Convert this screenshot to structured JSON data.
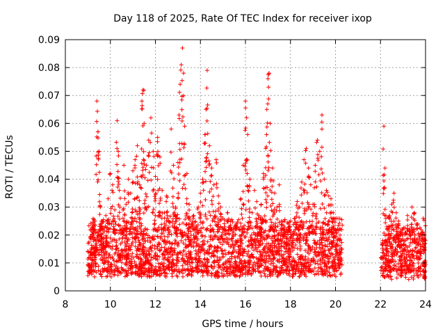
{
  "chart_data": {
    "type": "scatter",
    "title": "Day 118 of 2025, Rate Of TEC Index for receiver ixop",
    "xlabel": "GPS time / hours",
    "ylabel": "ROTI / TECUs",
    "xlim": [
      8,
      24
    ],
    "ylim": [
      0,
      0.09
    ],
    "x_ticks": [
      8,
      10,
      12,
      14,
      16,
      18,
      20,
      22,
      24
    ],
    "x_tick_labels": [
      "8",
      "10",
      "12",
      "14",
      "16",
      "18",
      "20",
      "22",
      "24"
    ],
    "y_ticks": [
      0,
      0.01,
      0.02,
      0.03,
      0.04,
      0.05,
      0.06,
      0.07,
      0.08,
      0.09
    ],
    "y_tick_labels": [
      "0",
      "0.01",
      "0.02",
      "0.03",
      "0.04",
      "0.05",
      "0.06",
      "0.07",
      "0.08",
      "0.09"
    ],
    "grid": true,
    "marker": "plus",
    "series_color": "#ff0000",
    "series": [
      {
        "name": "ROTI",
        "points": [
          [
            9.05,
            0.012
          ],
          [
            9.1,
            0.008
          ],
          [
            9.15,
            0.015
          ],
          [
            9.2,
            0.01
          ],
          [
            9.25,
            0.022
          ],
          [
            9.3,
            0.014
          ],
          [
            9.35,
            0.018
          ],
          [
            9.4,
            0.068
          ],
          [
            9.45,
            0.057
          ],
          [
            9.5,
            0.05
          ],
          [
            9.55,
            0.03
          ],
          [
            9.6,
            0.025
          ],
          [
            9.7,
            0.019
          ],
          [
            9.8,
            0.027
          ],
          [
            9.9,
            0.033
          ],
          [
            10.0,
            0.042
          ],
          [
            10.1,
            0.038
          ],
          [
            10.2,
            0.029
          ],
          [
            10.3,
            0.061
          ],
          [
            10.35,
            0.05
          ],
          [
            10.4,
            0.036
          ],
          [
            10.5,
            0.022
          ],
          [
            10.6,
            0.045
          ],
          [
            10.7,
            0.031
          ],
          [
            10.8,
            0.04
          ],
          [
            10.9,
            0.035
          ],
          [
            11.0,
            0.043
          ],
          [
            11.1,
            0.047
          ],
          [
            11.2,
            0.052
          ],
          [
            11.3,
            0.038
          ],
          [
            11.4,
            0.068
          ],
          [
            11.45,
            0.072
          ],
          [
            11.5,
            0.06
          ],
          [
            11.6,
            0.045
          ],
          [
            11.7,
            0.054
          ],
          [
            11.8,
            0.062
          ],
          [
            11.9,
            0.05
          ],
          [
            12.0,
            0.041
          ],
          [
            12.1,
            0.055
          ],
          [
            12.2,
            0.048
          ],
          [
            12.3,
            0.036
          ],
          [
            12.4,
            0.028
          ],
          [
            12.5,
            0.034
          ],
          [
            12.6,
            0.025
          ],
          [
            12.7,
            0.058
          ],
          [
            12.8,
            0.045
          ],
          [
            12.9,
            0.03
          ],
          [
            13.0,
            0.046
          ],
          [
            13.05,
            0.063
          ],
          [
            13.1,
            0.074
          ],
          [
            13.15,
            0.081
          ],
          [
            13.2,
            0.087
          ],
          [
            13.25,
            0.078
          ],
          [
            13.3,
            0.059
          ],
          [
            13.4,
            0.042
          ],
          [
            13.5,
            0.031
          ],
          [
            13.6,
            0.024
          ],
          [
            13.7,
            0.027
          ],
          [
            13.8,
            0.022
          ],
          [
            13.9,
            0.03
          ],
          [
            14.0,
            0.035
          ],
          [
            14.1,
            0.04
          ],
          [
            14.2,
            0.056
          ],
          [
            14.25,
            0.065
          ],
          [
            14.3,
            0.079
          ],
          [
            14.4,
            0.052
          ],
          [
            14.5,
            0.044
          ],
          [
            14.6,
            0.038
          ],
          [
            14.7,
            0.047
          ],
          [
            14.8,
            0.034
          ],
          [
            14.9,
            0.03
          ],
          [
            15.0,
            0.026
          ],
          [
            15.2,
            0.028
          ],
          [
            15.4,
            0.022
          ],
          [
            15.6,
            0.024
          ],
          [
            15.8,
            0.033
          ],
          [
            15.9,
            0.045
          ],
          [
            16.0,
            0.068
          ],
          [
            16.05,
            0.062
          ],
          [
            16.1,
            0.056
          ],
          [
            16.2,
            0.04
          ],
          [
            16.3,
            0.028
          ],
          [
            16.4,
            0.036
          ],
          [
            16.5,
            0.032
          ],
          [
            16.6,
            0.027
          ],
          [
            16.7,
            0.031
          ],
          [
            16.8,
            0.042
          ],
          [
            16.9,
            0.051
          ],
          [
            16.95,
            0.065
          ],
          [
            17.0,
            0.076
          ],
          [
            17.05,
            0.078
          ],
          [
            17.1,
            0.06
          ],
          [
            17.2,
            0.044
          ],
          [
            17.3,
            0.035
          ],
          [
            17.4,
            0.03
          ],
          [
            17.5,
            0.038
          ],
          [
            17.6,
            0.025
          ],
          [
            17.7,
            0.022
          ],
          [
            17.8,
            0.02
          ],
          [
            17.9,
            0.024
          ],
          [
            18.0,
            0.021
          ],
          [
            18.1,
            0.018
          ],
          [
            18.2,
            0.026
          ],
          [
            18.3,
            0.032
          ],
          [
            18.4,
            0.03
          ],
          [
            18.5,
            0.039
          ],
          [
            18.6,
            0.047
          ],
          [
            18.7,
            0.051
          ],
          [
            18.8,
            0.044
          ],
          [
            18.9,
            0.038
          ],
          [
            19.0,
            0.031
          ],
          [
            19.1,
            0.045
          ],
          [
            19.2,
            0.054
          ],
          [
            19.3,
            0.05
          ],
          [
            19.4,
            0.063
          ],
          [
            19.5,
            0.04
          ],
          [
            19.6,
            0.036
          ],
          [
            19.7,
            0.034
          ],
          [
            19.8,
            0.033
          ],
          [
            19.9,
            0.028
          ],
          [
            20.0,
            0.022
          ],
          [
            20.1,
            0.018
          ],
          [
            20.2,
            0.02
          ],
          [
            20.25,
            0.015
          ],
          [
            22.05,
            0.012
          ],
          [
            22.1,
            0.018
          ],
          [
            22.15,
            0.059
          ],
          [
            22.2,
            0.044
          ],
          [
            22.3,
            0.022
          ],
          [
            22.4,
            0.027
          ],
          [
            22.5,
            0.031
          ],
          [
            22.6,
            0.035
          ],
          [
            22.7,
            0.028
          ],
          [
            22.8,
            0.025
          ],
          [
            22.9,
            0.02
          ],
          [
            23.0,
            0.022
          ],
          [
            23.1,
            0.018
          ],
          [
            23.2,
            0.027
          ],
          [
            23.3,
            0.022
          ],
          [
            23.4,
            0.03
          ],
          [
            23.5,
            0.028
          ],
          [
            23.6,
            0.024
          ],
          [
            23.7,
            0.02
          ],
          [
            23.8,
            0.022
          ],
          [
            23.9,
            0.026
          ],
          [
            23.95,
            0.015
          ],
          [
            24.0,
            0.018
          ]
        ]
      }
    ],
    "bands": [
      {
        "x_start": 9.0,
        "x_end": 20.3,
        "floor": 0.005,
        "core_low": 0.007,
        "core_high": 0.022,
        "count": 2400
      },
      {
        "x_start": 22.05,
        "x_end": 24.0,
        "floor": 0.004,
        "core_low": 0.007,
        "core_high": 0.02,
        "count": 420
      }
    ]
  }
}
